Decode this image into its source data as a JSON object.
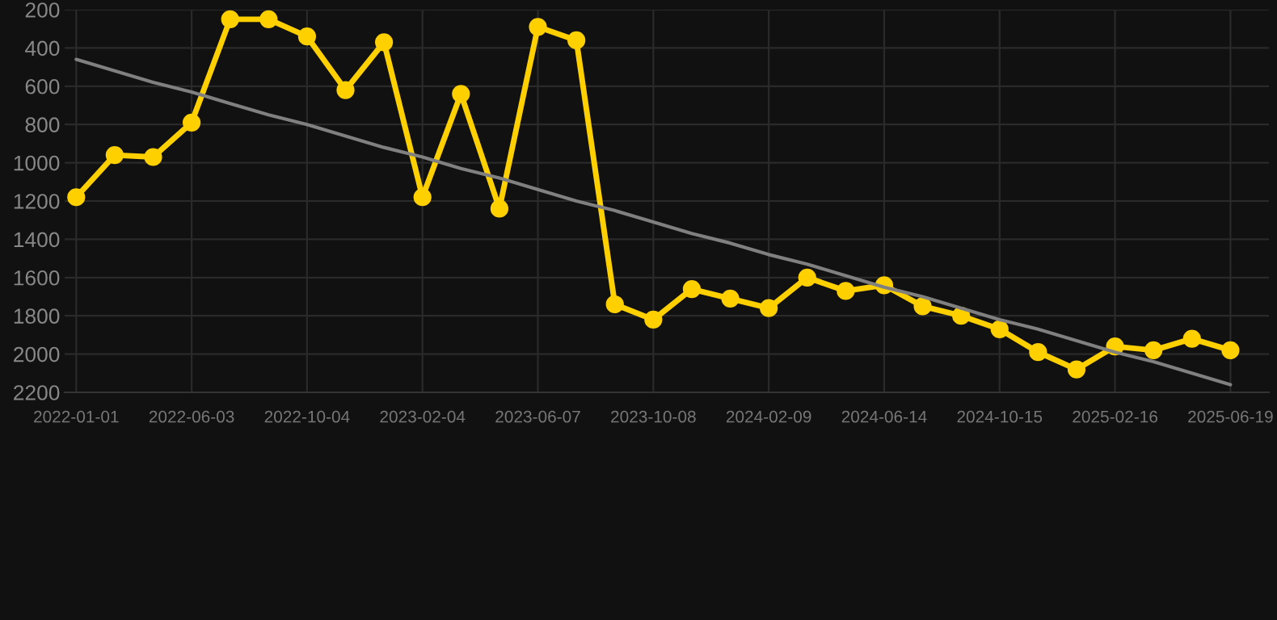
{
  "chart_data": {
    "type": "line",
    "categories": [
      "2022-01-01",
      null,
      null,
      "2022-06-03",
      null,
      null,
      "2022-10-04",
      null,
      null,
      "2023-02-04",
      null,
      null,
      "2023-06-07",
      null,
      null,
      "2023-10-08",
      null,
      null,
      "2024-02-09",
      null,
      null,
      "2024-06-14",
      null,
      null,
      "2024-10-15",
      null,
      null,
      "2025-02-16",
      null,
      null,
      "2025-06-19"
    ],
    "series": [
      {
        "color": "#ffd000",
        "values": [
          1180,
          960,
          970,
          790,
          250,
          250,
          340,
          620,
          370,
          1180,
          640,
          1240,
          290,
          360,
          1740,
          1820,
          1660,
          1710,
          1760,
          1600,
          1670,
          1640,
          1750,
          1800,
          1870,
          1990,
          2080,
          1960,
          1980,
          1920,
          1980
        ]
      },
      {
        "type": "line",
        "color": "#808080",
        "marker": "none",
        "values": [
          460,
          520,
          580,
          630,
          690,
          750,
          800,
          860,
          920,
          970,
          1030,
          1080,
          1140,
          1200,
          1250,
          1310,
          1370,
          1420,
          1480,
          1530,
          1590,
          1650,
          1700,
          1760,
          1820,
          1870,
          1930,
          1990,
          2040,
          2100,
          2160
        ]
      }
    ],
    "ylim": [
      2200,
      200
    ],
    "yticks": [
      200,
      400,
      600,
      800,
      1000,
      1200,
      1400,
      1600,
      1800,
      2000,
      2200
    ],
    "grid": true,
    "marker": "circle",
    "line_style": "solid"
  }
}
